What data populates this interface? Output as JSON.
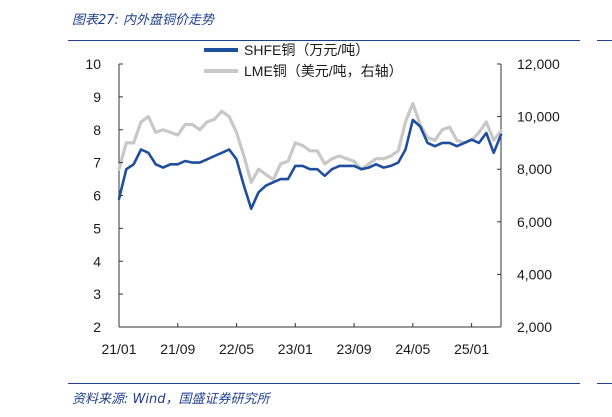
{
  "figure": {
    "title": "图表27: 内外盘铜价走势",
    "source": "资料来源: Wind，国盛证券研究所"
  },
  "chart_data": {
    "type": "line",
    "title": "",
    "xlabel": "",
    "ylabel": "",
    "x_ticks": [
      "21/01",
      "21/09",
      "22/05",
      "23/01",
      "23/09",
      "24/05",
      "25/01"
    ],
    "x_tick_dates": [
      "2021-01",
      "2021-09",
      "2022-05",
      "2023-01",
      "2023-09",
      "2024-05",
      "2025-01"
    ],
    "x_range": [
      "2021-01",
      "2025-05"
    ],
    "y_left": {
      "range": [
        2,
        10
      ],
      "ticks": [
        2,
        3,
        4,
        5,
        6,
        7,
        8,
        9,
        10
      ]
    },
    "y_right": {
      "range": [
        2000,
        12000
      ],
      "ticks": [
        2000,
        4000,
        6000,
        8000,
        10000,
        12000
      ],
      "tick_labels": [
        "2,000",
        "4,000",
        "6,000",
        "8,000",
        "10,000",
        "12,000"
      ]
    },
    "legend_position": "top-center",
    "grid": false,
    "series": [
      {
        "name": "SHFE铜（万元/吨）",
        "axis": "left",
        "color": "#1f4e9c",
        "dates": [
          "2021-01",
          "2021-02",
          "2021-03",
          "2021-04",
          "2021-05",
          "2021-06",
          "2021-07",
          "2021-08",
          "2021-09",
          "2021-10",
          "2021-11",
          "2021-12",
          "2022-01",
          "2022-02",
          "2022-03",
          "2022-04",
          "2022-05",
          "2022-06",
          "2022-07",
          "2022-08",
          "2022-09",
          "2022-10",
          "2022-11",
          "2022-12",
          "2023-01",
          "2023-02",
          "2023-03",
          "2023-04",
          "2023-05",
          "2023-06",
          "2023-07",
          "2023-08",
          "2023-09",
          "2023-10",
          "2023-11",
          "2023-12",
          "2024-01",
          "2024-02",
          "2024-03",
          "2024-04",
          "2024-05",
          "2024-06",
          "2024-07",
          "2024-08",
          "2024-09",
          "2024-10",
          "2024-11",
          "2024-12",
          "2025-01",
          "2025-02",
          "2025-03",
          "2025-04",
          "2025-05"
        ],
        "values": [
          5.9,
          6.8,
          6.95,
          7.4,
          7.3,
          6.95,
          6.85,
          6.95,
          6.95,
          7.05,
          7.0,
          7.0,
          7.1,
          7.2,
          7.3,
          7.4,
          7.1,
          6.3,
          5.6,
          6.1,
          6.3,
          6.4,
          6.5,
          6.5,
          6.9,
          6.9,
          6.8,
          6.8,
          6.6,
          6.8,
          6.9,
          6.9,
          6.9,
          6.8,
          6.85,
          6.95,
          6.85,
          6.9,
          7.0,
          7.4,
          8.3,
          8.1,
          7.6,
          7.5,
          7.6,
          7.6,
          7.5,
          7.6,
          7.7,
          7.6,
          7.9,
          7.3,
          7.85
        ]
      },
      {
        "name": "LME铜（美元/吨，右轴）",
        "axis": "right",
        "color": "#c8c8c8",
        "dates": [
          "2021-01",
          "2021-02",
          "2021-03",
          "2021-04",
          "2021-05",
          "2021-06",
          "2021-07",
          "2021-08",
          "2021-09",
          "2021-10",
          "2021-11",
          "2021-12",
          "2022-01",
          "2022-02",
          "2022-03",
          "2022-04",
          "2022-05",
          "2022-06",
          "2022-07",
          "2022-08",
          "2022-09",
          "2022-10",
          "2022-11",
          "2022-12",
          "2023-01",
          "2023-02",
          "2023-03",
          "2023-04",
          "2023-05",
          "2023-06",
          "2023-07",
          "2023-08",
          "2023-09",
          "2023-10",
          "2023-11",
          "2023-12",
          "2024-01",
          "2024-02",
          "2024-03",
          "2024-04",
          "2024-05",
          "2024-06",
          "2024-07",
          "2024-08",
          "2024-09",
          "2024-10",
          "2024-11",
          "2024-12",
          "2025-01",
          "2025-02",
          "2025-03",
          "2025-04",
          "2025-05"
        ],
        "values": [
          8000,
          9000,
          9000,
          9800,
          10000,
          9400,
          9500,
          9400,
          9300,
          9700,
          9700,
          9500,
          9800,
          9900,
          10200,
          10000,
          9400,
          8500,
          7500,
          8000,
          7800,
          7600,
          8200,
          8300,
          9000,
          8900,
          8700,
          8700,
          8200,
          8400,
          8500,
          8400,
          8300,
          8000,
          8200,
          8400,
          8400,
          8500,
          8700,
          9800,
          10500,
          9700,
          9200,
          9100,
          9500,
          9600,
          9100,
          9000,
          9100,
          9400,
          9800,
          9100,
          9450
        ]
      }
    ]
  }
}
